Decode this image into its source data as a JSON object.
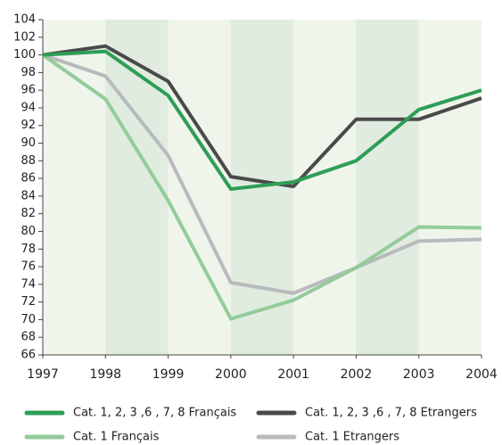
{
  "chart_data": {
    "type": "line",
    "x": [
      1997,
      1998,
      1999,
      2000,
      2001,
      2002,
      2003,
      2004
    ],
    "xlim": [
      1997,
      2004
    ],
    "xticks": [
      1997,
      1998,
      1999,
      2000,
      2001,
      2002,
      2003,
      2004
    ],
    "ylim": [
      66,
      104
    ],
    "yticks": [
      66,
      68,
      70,
      72,
      74,
      76,
      78,
      80,
      82,
      84,
      86,
      88,
      90,
      92,
      94,
      96,
      98,
      100,
      102,
      104
    ],
    "series": [
      {
        "name": "Cat. 1, 2, 3 ,6 , 7, 8 Français",
        "color": "#2e9e57",
        "values": [
          100,
          100.4,
          95.4,
          84.8,
          85.6,
          88,
          93.8,
          96
        ]
      },
      {
        "name": "Cat. 1, 2, 3 ,6 , 7, 8 Etrangers",
        "color": "#4a4a4a",
        "values": [
          100,
          101,
          97,
          86.2,
          85.1,
          92.7,
          92.7,
          95.1
        ]
      },
      {
        "name": "Cat. 1 Français",
        "color": "#93cc9a",
        "values": [
          100,
          95,
          83.5,
          70.1,
          72.2,
          75.9,
          80.5,
          80.4
        ]
      },
      {
        "name": "Cat. 1 Etrangers",
        "color": "#b9babd",
        "values": [
          100,
          97.6,
          88.6,
          74.2,
          73,
          75.9,
          78.9,
          79.1
        ]
      }
    ]
  }
}
